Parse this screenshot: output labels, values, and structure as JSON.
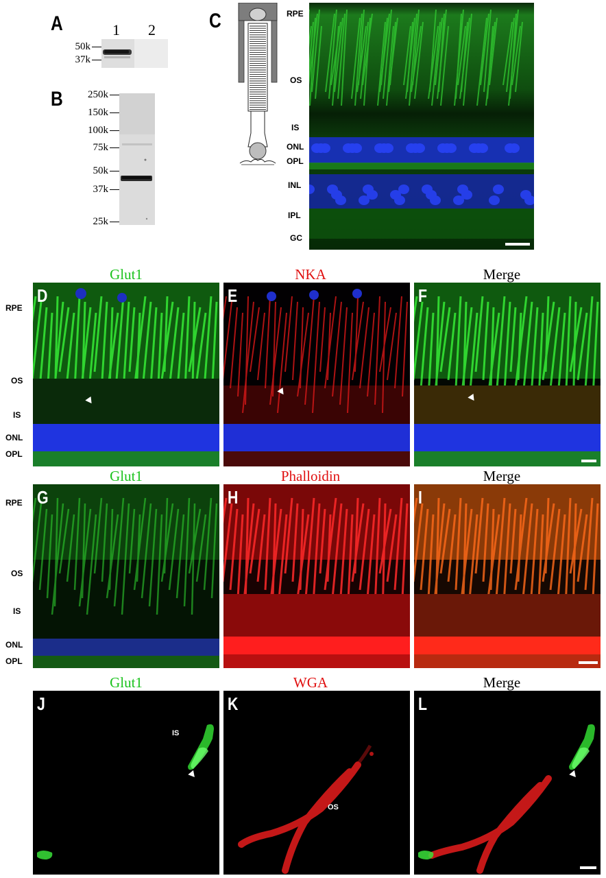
{
  "panel_letters": {
    "A": "A",
    "B": "B",
    "C": "C",
    "D": "D",
    "E": "E",
    "F": "F",
    "G": "G",
    "H": "H",
    "I": "I",
    "J": "J",
    "K": "K",
    "L": "L"
  },
  "blot_a": {
    "lanes": [
      "1",
      "2"
    ],
    "markers": [
      "50k",
      "37k"
    ]
  },
  "blot_b": {
    "markers": [
      "250k",
      "150k",
      "100k",
      "75k",
      "50k",
      "37k",
      "25k"
    ]
  },
  "panel_c": {
    "layers": [
      "RPE",
      "OS",
      "IS",
      "ONL",
      "OPL",
      "INL",
      "IPL",
      "GC"
    ]
  },
  "row_def": {
    "titles": [
      "Glut1",
      "NKA",
      "Merge"
    ],
    "title_colors": [
      "#19c21b",
      "#e01010",
      "#000000"
    ],
    "layers": [
      "RPE",
      "OS",
      "IS",
      "ONL",
      "OPL"
    ]
  },
  "row_ghi": {
    "titles": [
      "Glut1",
      "Phalloidin",
      "Merge"
    ],
    "title_colors": [
      "#19c21b",
      "#e01010",
      "#000000"
    ],
    "layers": [
      "RPE",
      "OS",
      "IS",
      "ONL",
      "OPL"
    ]
  },
  "row_jkl": {
    "titles": [
      "Glut1",
      "WGA",
      "Merge"
    ],
    "title_colors": [
      "#19c21b",
      "#e01010",
      "#000000"
    ],
    "inset_labels": {
      "is": "IS",
      "os": "OS"
    }
  }
}
